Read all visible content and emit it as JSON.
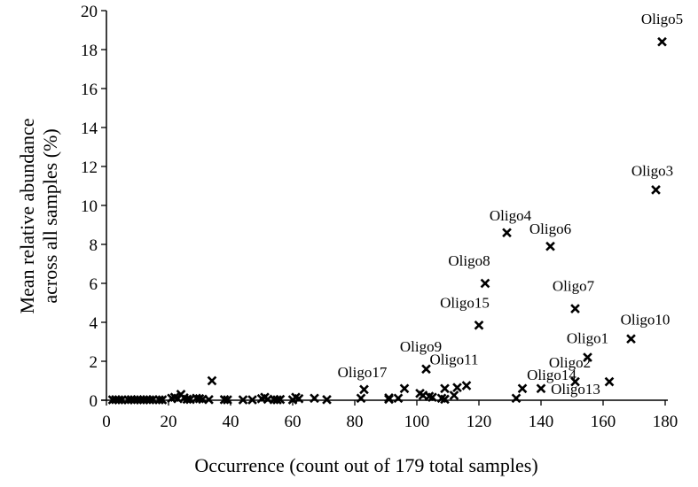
{
  "chart_data": {
    "type": "scatter",
    "title": "",
    "xlabel": "Occurrence (count out of 179 total samples)",
    "ylabel_lines": [
      "Mean relative abundance",
      "across all samples (%)"
    ],
    "ylabel": "Mean relative abundance across all samples (%)",
    "xlim": [
      0,
      180
    ],
    "ylim": [
      0,
      20
    ],
    "x_ticks": [
      0,
      20,
      40,
      60,
      80,
      100,
      120,
      140,
      160,
      180
    ],
    "y_ticks": [
      0,
      2,
      4,
      6,
      8,
      10,
      12,
      14,
      16,
      18,
      20
    ],
    "grid": false,
    "legend": null,
    "marker": "x-filled",
    "marker_color": "#000000",
    "labeled_points": [
      {
        "label": "Oligo5",
        "x": 179,
        "y": 18.4
      },
      {
        "label": "Oligo3",
        "x": 177,
        "y": 10.8
      },
      {
        "label": "Oligo4",
        "x": 129,
        "y": 8.6
      },
      {
        "label": "Oligo6",
        "x": 143,
        "y": 7.9
      },
      {
        "label": "Oligo8",
        "x": 122,
        "y": 6.0
      },
      {
        "label": "Oligo7",
        "x": 151,
        "y": 4.7
      },
      {
        "label": "Oligo15",
        "x": 120,
        "y": 3.85
      },
      {
        "label": "Oligo10",
        "x": 169,
        "y": 3.15
      },
      {
        "label": "Oligo1",
        "x": 155,
        "y": 2.2
      },
      {
        "label": "Oligo9",
        "x": 103,
        "y": 1.6
      },
      {
        "label": "Oligo2",
        "x": 151,
        "y": 0.95
      },
      {
        "label": "Oligo13",
        "x": 162,
        "y": 0.95
      },
      {
        "label": "Oligo14",
        "x": 140,
        "y": 0.6
      },
      {
        "label": "Oligo11",
        "x": 116,
        "y": 0.75
      },
      {
        "label": "Oligo17",
        "x": 83,
        "y": 0.55
      }
    ],
    "unlabeled_points": [
      {
        "x": 2,
        "y": 0.02
      },
      {
        "x": 3,
        "y": 0.03
      },
      {
        "x": 4,
        "y": 0.02
      },
      {
        "x": 5,
        "y": 0.02
      },
      {
        "x": 7,
        "y": 0.02
      },
      {
        "x": 8,
        "y": 0.03
      },
      {
        "x": 9,
        "y": 0.02
      },
      {
        "x": 10,
        "y": 0.03
      },
      {
        "x": 11,
        "y": 0.02
      },
      {
        "x": 12,
        "y": 0.02
      },
      {
        "x": 13,
        "y": 0.03
      },
      {
        "x": 14,
        "y": 0.02
      },
      {
        "x": 15,
        "y": 0.03
      },
      {
        "x": 17,
        "y": 0.02
      },
      {
        "x": 18,
        "y": 0.02
      },
      {
        "x": 21,
        "y": 0.1
      },
      {
        "x": 22,
        "y": 0.15
      },
      {
        "x": 23,
        "y": 0.08
      },
      {
        "x": 24,
        "y": 0.3
      },
      {
        "x": 25,
        "y": 0.12
      },
      {
        "x": 26,
        "y": 0.05
      },
      {
        "x": 27,
        "y": 0.04
      },
      {
        "x": 29,
        "y": 0.1
      },
      {
        "x": 30,
        "y": 0.08
      },
      {
        "x": 31,
        "y": 0.05
      },
      {
        "x": 33,
        "y": 0.03
      },
      {
        "x": 34,
        "y": 1.0
      },
      {
        "x": 38,
        "y": 0.03
      },
      {
        "x": 39,
        "y": 0.02
      },
      {
        "x": 44,
        "y": 0.02
      },
      {
        "x": 47,
        "y": 0.02
      },
      {
        "x": 50,
        "y": 0.08
      },
      {
        "x": 51,
        "y": 0.15
      },
      {
        "x": 52,
        "y": 0.05
      },
      {
        "x": 54,
        "y": 0.03
      },
      {
        "x": 55,
        "y": 0.02
      },
      {
        "x": 56,
        "y": 0.04
      },
      {
        "x": 60,
        "y": 0.02
      },
      {
        "x": 61,
        "y": 0.15
      },
      {
        "x": 62,
        "y": 0.08
      },
      {
        "x": 67,
        "y": 0.1
      },
      {
        "x": 71,
        "y": 0.03
      },
      {
        "x": 82,
        "y": 0.1
      },
      {
        "x": 91,
        "y": 0.05
      },
      {
        "x": 91,
        "y": 0.12
      },
      {
        "x": 94,
        "y": 0.1
      },
      {
        "x": 96,
        "y": 0.6
      },
      {
        "x": 101,
        "y": 0.35
      },
      {
        "x": 102,
        "y": 0.25
      },
      {
        "x": 104,
        "y": 0.2
      },
      {
        "x": 105,
        "y": 0.15
      },
      {
        "x": 108,
        "y": 0.1
      },
      {
        "x": 109,
        "y": 0.05
      },
      {
        "x": 109,
        "y": 0.6
      },
      {
        "x": 112,
        "y": 0.25
      },
      {
        "x": 113,
        "y": 0.65
      },
      {
        "x": 132,
        "y": 0.1
      },
      {
        "x": 134,
        "y": 0.6
      }
    ]
  }
}
